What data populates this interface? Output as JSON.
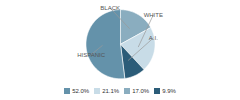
{
  "chart_data": {
    "type": "pie",
    "categories": [
      "BLACK",
      "WHITE",
      "A.I.",
      "HISPANIC"
    ],
    "values": [
      17.0,
      21.1,
      9.9,
      52.0
    ],
    "colors": [
      "#8aadbf",
      "#c8dce7",
      "#2b5c78",
      "#6492aa"
    ],
    "legend": "bottom",
    "legend_labels": [
      "52.0%",
      "21.1%",
      "17.0%",
      "9.9%"
    ],
    "legend_colors": [
      "#6492aa",
      "#c8dce7",
      "#8aadbf",
      "#2b5c78"
    ]
  }
}
